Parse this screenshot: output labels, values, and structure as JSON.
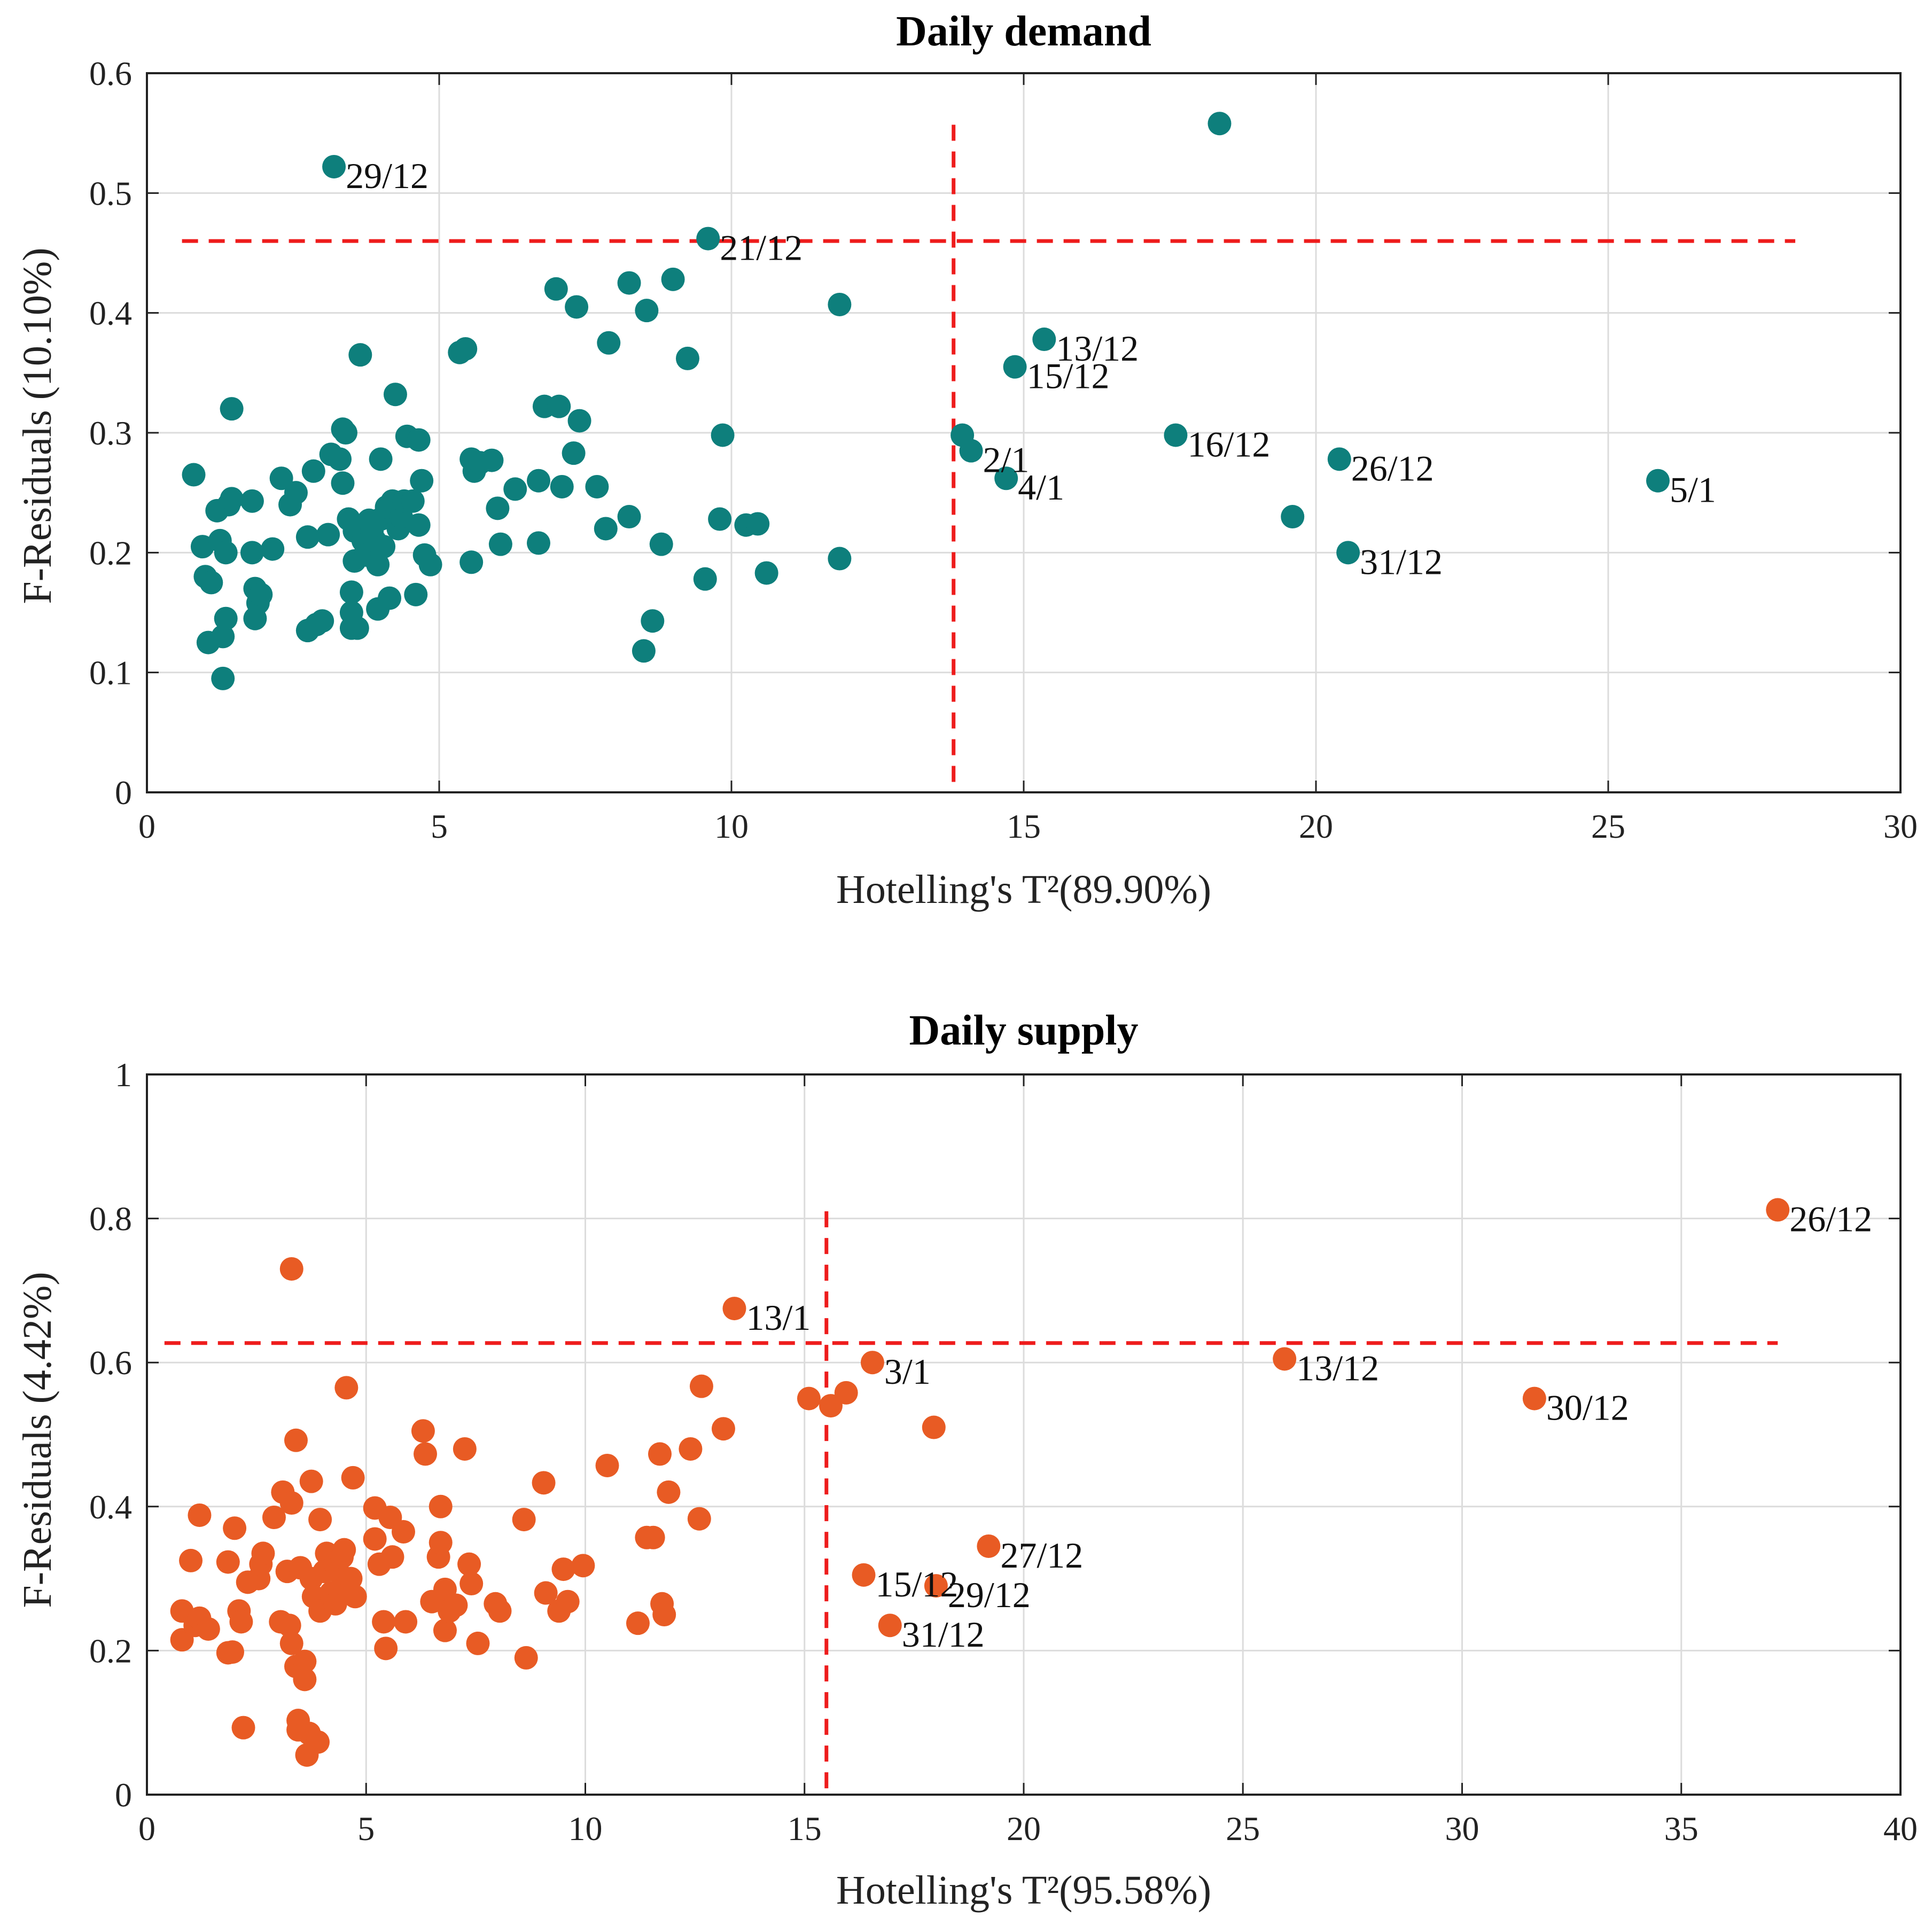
{
  "chart_data": [
    {
      "type": "scatter",
      "title": "Daily demand",
      "xlabel": "Hotelling's T²(89.90%)",
      "ylabel": "F-Residuals (10.10%)",
      "xlim": [
        0,
        30
      ],
      "ylim": [
        0,
        0.6
      ],
      "xticks": [
        0,
        5,
        10,
        15,
        20,
        25,
        30
      ],
      "yticks": [
        0,
        0.1,
        0.2,
        0.3,
        0.4,
        0.5,
        0.6
      ],
      "ytick_labels": [
        "0",
        "0.1",
        "0.2",
        "0.3",
        "0.4",
        "0.5",
        "0.6"
      ],
      "grid": true,
      "color": "#0e7f7c",
      "thresholds": {
        "x": 13.8,
        "y": 0.46,
        "x_line_top": 0.557,
        "y_line_from": 0.6,
        "y_line_to": 28.2
      },
      "points": [
        [
          0.8,
          0.265
        ],
        [
          0.95,
          0.205
        ],
        [
          1.0,
          0.18
        ],
        [
          1.05,
          0.125
        ],
        [
          1.1,
          0.175
        ],
        [
          1.2,
          0.235
        ],
        [
          1.25,
          0.21
        ],
        [
          1.3,
          0.095
        ],
        [
          1.3,
          0.13
        ],
        [
          1.35,
          0.145
        ],
        [
          1.35,
          0.2
        ],
        [
          1.4,
          0.24
        ],
        [
          1.45,
          0.245
        ],
        [
          1.45,
          0.32
        ],
        [
          1.8,
          0.243
        ],
        [
          1.8,
          0.2
        ],
        [
          1.85,
          0.17
        ],
        [
          1.85,
          0.145
        ],
        [
          1.9,
          0.158
        ],
        [
          1.95,
          0.165
        ],
        [
          2.15,
          0.203
        ],
        [
          2.3,
          0.262
        ],
        [
          2.45,
          0.24
        ],
        [
          2.55,
          0.25
        ],
        [
          2.75,
          0.213
        ],
        [
          2.75,
          0.135
        ],
        [
          2.85,
          0.268
        ],
        [
          2.9,
          0.14
        ],
        [
          3.0,
          0.143
        ],
        [
          3.1,
          0.215
        ],
        [
          3.15,
          0.282
        ],
        [
          3.3,
          0.278
        ],
        [
          3.35,
          0.303
        ],
        [
          3.35,
          0.258
        ],
        [
          3.4,
          0.3
        ],
        [
          3.45,
          0.228
        ],
        [
          3.5,
          0.167
        ],
        [
          3.5,
          0.15
        ],
        [
          3.5,
          0.137
        ],
        [
          3.55,
          0.218
        ],
        [
          3.55,
          0.193
        ],
        [
          3.6,
          0.137
        ],
        [
          3.65,
          0.365
        ],
        [
          3.7,
          0.21
        ],
        [
          3.75,
          0.205
        ],
        [
          3.75,
          0.198
        ],
        [
          3.8,
          0.227
        ],
        [
          3.85,
          0.218
        ],
        [
          3.9,
          0.21
        ],
        [
          3.95,
          0.19
        ],
        [
          3.95,
          0.153
        ],
        [
          4.0,
          0.278
        ],
        [
          4.0,
          0.228
        ],
        [
          4.05,
          0.205
        ],
        [
          4.1,
          0.238
        ],
        [
          4.15,
          0.162
        ],
        [
          4.2,
          0.243
        ],
        [
          4.25,
          0.332
        ],
        [
          4.3,
          0.22
        ],
        [
          4.35,
          0.23
        ],
        [
          4.4,
          0.243
        ],
        [
          4.45,
          0.297
        ],
        [
          4.55,
          0.243
        ],
        [
          4.6,
          0.165
        ],
        [
          4.65,
          0.223
        ],
        [
          4.65,
          0.294
        ],
        [
          4.7,
          0.26
        ],
        [
          4.75,
          0.198
        ],
        [
          4.85,
          0.19
        ],
        [
          5.35,
          0.367
        ],
        [
          5.45,
          0.37
        ],
        [
          5.55,
          0.278
        ],
        [
          5.55,
          0.192
        ],
        [
          5.6,
          0.268
        ],
        [
          5.7,
          0.275
        ],
        [
          5.9,
          0.277
        ],
        [
          6.0,
          0.237
        ],
        [
          6.05,
          0.207
        ],
        [
          6.3,
          0.253
        ],
        [
          6.7,
          0.26
        ],
        [
          6.7,
          0.208
        ],
        [
          6.8,
          0.322
        ],
        [
          7.0,
          0.42
        ],
        [
          7.05,
          0.322
        ],
        [
          7.1,
          0.255
        ],
        [
          7.3,
          0.283
        ],
        [
          7.35,
          0.405
        ],
        [
          7.4,
          0.31
        ],
        [
          7.7,
          0.255
        ],
        [
          7.85,
          0.22
        ],
        [
          7.9,
          0.375
        ],
        [
          8.25,
          0.425
        ],
        [
          8.25,
          0.23
        ],
        [
          8.5,
          0.118
        ],
        [
          8.55,
          0.402
        ],
        [
          8.65,
          0.143
        ],
        [
          8.8,
          0.207
        ],
        [
          9.0,
          0.428
        ],
        [
          9.25,
          0.362
        ],
        [
          9.55,
          0.178
        ],
        [
          9.6,
          0.462
        ],
        [
          9.8,
          0.228
        ],
        [
          9.85,
          0.298
        ],
        [
          10.25,
          0.223
        ],
        [
          10.45,
          0.224
        ],
        [
          10.6,
          0.183
        ],
        [
          11.85,
          0.407
        ],
        [
          11.85,
          0.195
        ],
        [
          13.95,
          0.298
        ],
        [
          14.1,
          0.285
        ],
        [
          14.7,
          0.262
        ],
        [
          14.85,
          0.355
        ],
        [
          15.35,
          0.378
        ],
        [
          17.6,
          0.298
        ],
        [
          18.35,
          0.558
        ],
        [
          19.6,
          0.23
        ],
        [
          20.4,
          0.278
        ],
        [
          20.55,
          0.2
        ],
        [
          25.85,
          0.26
        ],
        [
          3.2,
          0.522
        ]
      ],
      "annotations": [
        {
          "x": 3.2,
          "y": 0.522,
          "label": "29/12"
        },
        {
          "x": 9.6,
          "y": 0.462,
          "label": "21/12"
        },
        {
          "x": 15.35,
          "y": 0.378,
          "label": "13/12"
        },
        {
          "x": 14.85,
          "y": 0.355,
          "label": "15/12"
        },
        {
          "x": 14.1,
          "y": 0.285,
          "label": "2/1"
        },
        {
          "x": 14.7,
          "y": 0.262,
          "label": "4/1"
        },
        {
          "x": 17.6,
          "y": 0.298,
          "label": "16/12"
        },
        {
          "x": 20.4,
          "y": 0.278,
          "label": "26/12"
        },
        {
          "x": 20.55,
          "y": 0.2,
          "label": "31/12"
        },
        {
          "x": 25.85,
          "y": 0.26,
          "label": "5/1"
        }
      ]
    },
    {
      "type": "scatter",
      "title": "Daily supply",
      "xlabel": "Hotelling's T²(95.58%)",
      "ylabel": "F-Residuals (4.42%)",
      "xlim": [
        0,
        40
      ],
      "ylim": [
        0,
        1
      ],
      "xticks": [
        0,
        5,
        10,
        15,
        20,
        25,
        30,
        35,
        40
      ],
      "yticks": [
        0,
        0.2,
        0.4,
        0.6,
        0.8,
        1
      ],
      "ytick_labels": [
        "0",
        "0.2",
        "0.4",
        "0.6",
        "0.8",
        "1"
      ],
      "grid": true,
      "color": "#e85b24",
      "thresholds": {
        "x": 15.5,
        "y": 0.627,
        "x_line_top": 0.81,
        "y_line_from": 0.4,
        "y_line_to": 37.2
      },
      "points": [
        [
          0.8,
          0.255
        ],
        [
          0.8,
          0.215
        ],
        [
          1.0,
          0.325
        ],
        [
          1.1,
          0.235
        ],
        [
          1.2,
          0.388
        ],
        [
          1.2,
          0.245
        ],
        [
          1.4,
          0.23
        ],
        [
          1.85,
          0.323
        ],
        [
          1.85,
          0.197
        ],
        [
          1.95,
          0.198
        ],
        [
          2.0,
          0.37
        ],
        [
          2.1,
          0.255
        ],
        [
          2.15,
          0.24
        ],
        [
          2.2,
          0.093
        ],
        [
          2.3,
          0.295
        ],
        [
          2.55,
          0.3
        ],
        [
          2.6,
          0.32
        ],
        [
          2.65,
          0.335
        ],
        [
          2.9,
          0.385
        ],
        [
          3.05,
          0.24
        ],
        [
          3.1,
          0.42
        ],
        [
          3.2,
          0.31
        ],
        [
          3.25,
          0.235
        ],
        [
          3.3,
          0.73
        ],
        [
          3.3,
          0.405
        ],
        [
          3.3,
          0.21
        ],
        [
          3.4,
          0.492
        ],
        [
          3.4,
          0.178
        ],
        [
          3.45,
          0.103
        ],
        [
          3.45,
          0.09
        ],
        [
          3.5,
          0.315
        ],
        [
          3.6,
          0.185
        ],
        [
          3.6,
          0.16
        ],
        [
          3.65,
          0.055
        ],
        [
          3.7,
          0.085
        ],
        [
          3.75,
          0.435
        ],
        [
          3.75,
          0.3
        ],
        [
          3.8,
          0.275
        ],
        [
          3.9,
          0.073
        ],
        [
          3.95,
          0.255
        ],
        [
          3.95,
          0.382
        ],
        [
          4.05,
          0.31
        ],
        [
          4.1,
          0.335
        ],
        [
          4.2,
          0.28
        ],
        [
          4.3,
          0.265
        ],
        [
          4.3,
          0.32
        ],
        [
          4.35,
          0.31
        ],
        [
          4.45,
          0.33
        ],
        [
          4.5,
          0.34
        ],
        [
          4.55,
          0.565
        ],
        [
          4.55,
          0.29
        ],
        [
          4.65,
          0.3
        ],
        [
          4.7,
          0.44
        ],
        [
          4.75,
          0.275
        ],
        [
          5.2,
          0.398
        ],
        [
          5.2,
          0.355
        ],
        [
          5.3,
          0.32
        ],
        [
          5.4,
          0.24
        ],
        [
          5.45,
          0.203
        ],
        [
          5.55,
          0.385
        ],
        [
          5.6,
          0.33
        ],
        [
          5.85,
          0.365
        ],
        [
          5.9,
          0.24
        ],
        [
          6.3,
          0.505
        ],
        [
          6.35,
          0.473
        ],
        [
          6.5,
          0.268
        ],
        [
          6.65,
          0.33
        ],
        [
          6.7,
          0.35
        ],
        [
          6.7,
          0.4
        ],
        [
          6.8,
          0.285
        ],
        [
          6.8,
          0.228
        ],
        [
          6.9,
          0.255
        ],
        [
          7.05,
          0.263
        ],
        [
          7.25,
          0.48
        ],
        [
          7.35,
          0.32
        ],
        [
          7.4,
          0.293
        ],
        [
          7.55,
          0.21
        ],
        [
          7.95,
          0.265
        ],
        [
          8.05,
          0.255
        ],
        [
          8.6,
          0.382
        ],
        [
          8.65,
          0.19
        ],
        [
          9.05,
          0.433
        ],
        [
          9.1,
          0.28
        ],
        [
          9.4,
          0.255
        ],
        [
          9.5,
          0.313
        ],
        [
          9.6,
          0.268
        ],
        [
          9.95,
          0.318
        ],
        [
          10.5,
          0.457
        ],
        [
          11.2,
          0.238
        ],
        [
          11.4,
          0.357
        ],
        [
          11.55,
          0.357
        ],
        [
          11.7,
          0.473
        ],
        [
          11.75,
          0.265
        ],
        [
          11.8,
          0.25
        ],
        [
          11.9,
          0.42
        ],
        [
          12.4,
          0.48
        ],
        [
          12.6,
          0.383
        ],
        [
          12.65,
          0.567
        ],
        [
          13.15,
          0.508
        ],
        [
          13.4,
          0.675
        ],
        [
          15.1,
          0.55
        ],
        [
          15.6,
          0.54
        ],
        [
          15.95,
          0.558
        ],
        [
          16.35,
          0.305
        ],
        [
          16.55,
          0.6
        ],
        [
          16.95,
          0.235
        ],
        [
          17.95,
          0.51
        ],
        [
          18.0,
          0.29
        ],
        [
          19.2,
          0.345
        ],
        [
          25.95,
          0.605
        ],
        [
          31.65,
          0.55
        ],
        [
          37.2,
          0.812
        ]
      ],
      "annotations": [
        {
          "x": 37.2,
          "y": 0.812,
          "label": "26/12"
        },
        {
          "x": 13.4,
          "y": 0.675,
          "label": "13/1"
        },
        {
          "x": 16.55,
          "y": 0.6,
          "label": "3/1"
        },
        {
          "x": 25.95,
          "y": 0.605,
          "label": "13/12"
        },
        {
          "x": 31.65,
          "y": 0.55,
          "label": "30/12"
        },
        {
          "x": 19.2,
          "y": 0.345,
          "label": "27/12"
        },
        {
          "x": 16.35,
          "y": 0.305,
          "label": "15/12"
        },
        {
          "x": 18.0,
          "y": 0.29,
          "label": "29/12"
        },
        {
          "x": 16.95,
          "y": 0.235,
          "label": "31/12"
        }
      ]
    }
  ]
}
